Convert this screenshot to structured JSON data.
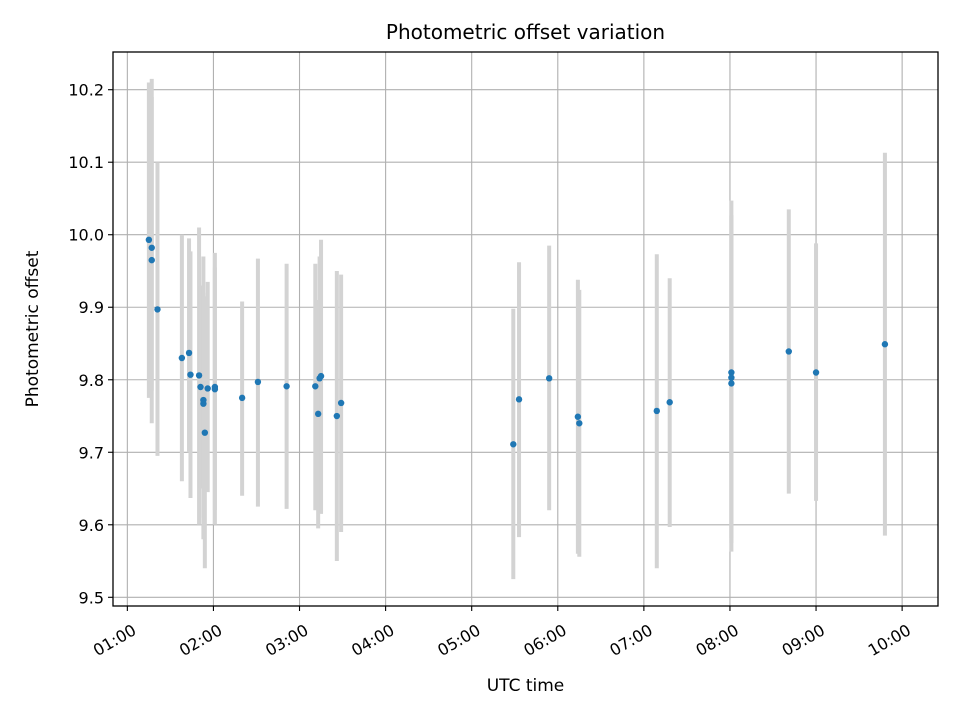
{
  "chart_data": {
    "type": "scatter",
    "title": "Photometric offset variation",
    "xlabel": "UTC time",
    "ylabel": "Photometric offset",
    "xlim": [
      "00:50",
      "10:25"
    ],
    "ylim": [
      9.488,
      10.252
    ],
    "x_ticks": [
      "01:00",
      "02:00",
      "03:00",
      "04:00",
      "05:00",
      "06:00",
      "07:00",
      "08:00",
      "09:00",
      "10:00"
    ],
    "y_ticks": [
      "9.5",
      "9.6",
      "9.7",
      "9.8",
      "9.9",
      "10.0",
      "10.1",
      "10.2"
    ],
    "grid": true,
    "point_color": "#1f77b4",
    "errorbar_color": "#d3d3d3",
    "points": [
      {
        "x": "01:15",
        "y": 9.993,
        "ylow": 9.775,
        "yhigh": 10.21
      },
      {
        "x": "01:17",
        "y": 9.982,
        "ylow": 9.785,
        "yhigh": 10.215
      },
      {
        "x": "01:17",
        "y": 9.965,
        "ylow": 9.74,
        "yhigh": 10.19
      },
      {
        "x": "01:21",
        "y": 9.897,
        "ylow": 9.695,
        "yhigh": 10.1
      },
      {
        "x": "01:38",
        "y": 9.83,
        "ylow": 9.66,
        "yhigh": 10.0
      },
      {
        "x": "01:43",
        "y": 9.837,
        "ylow": 9.7,
        "yhigh": 9.995
      },
      {
        "x": "01:44",
        "y": 9.807,
        "ylow": 9.637,
        "yhigh": 9.977
      },
      {
        "x": "01:50",
        "y": 9.806,
        "ylow": 9.6,
        "yhigh": 10.01
      },
      {
        "x": "01:51",
        "y": 9.79,
        "ylow": 9.65,
        "yhigh": 9.93
      },
      {
        "x": "01:53",
        "y": 9.772,
        "ylow": 9.58,
        "yhigh": 9.97
      },
      {
        "x": "01:53",
        "y": 9.767,
        "ylow": 9.61,
        "yhigh": 9.92
      },
      {
        "x": "01:54",
        "y": 9.727,
        "ylow": 9.54,
        "yhigh": 9.915
      },
      {
        "x": "01:56",
        "y": 9.788,
        "ylow": 9.645,
        "yhigh": 9.935
      },
      {
        "x": "02:01",
        "y": 9.79,
        "ylow": 9.6,
        "yhigh": 9.975
      },
      {
        "x": "02:01",
        "y": 9.787,
        "ylow": 9.62,
        "yhigh": 9.955
      },
      {
        "x": "02:20",
        "y": 9.775,
        "ylow": 9.64,
        "yhigh": 9.908
      },
      {
        "x": "02:31",
        "y": 9.797,
        "ylow": 9.625,
        "yhigh": 9.967
      },
      {
        "x": "02:51",
        "y": 9.791,
        "ylow": 9.622,
        "yhigh": 9.96
      },
      {
        "x": "03:11",
        "y": 9.791,
        "ylow": 9.62,
        "yhigh": 9.96
      },
      {
        "x": "03:13",
        "y": 9.753,
        "ylow": 9.595,
        "yhigh": 9.91
      },
      {
        "x": "03:14",
        "y": 9.802,
        "ylow": 9.64,
        "yhigh": 9.97
      },
      {
        "x": "03:15",
        "y": 9.805,
        "ylow": 9.615,
        "yhigh": 9.993
      },
      {
        "x": "03:26",
        "y": 9.75,
        "ylow": 9.55,
        "yhigh": 9.95
      },
      {
        "x": "03:29",
        "y": 9.768,
        "ylow": 9.59,
        "yhigh": 9.945
      },
      {
        "x": "05:29",
        "y": 9.711,
        "ylow": 9.525,
        "yhigh": 9.898
      },
      {
        "x": "05:33",
        "y": 9.773,
        "ylow": 9.583,
        "yhigh": 9.962
      },
      {
        "x": "05:54",
        "y": 9.802,
        "ylow": 9.62,
        "yhigh": 9.985
      },
      {
        "x": "06:14",
        "y": 9.749,
        "ylow": 9.56,
        "yhigh": 9.938
      },
      {
        "x": "06:15",
        "y": 9.74,
        "ylow": 9.556,
        "yhigh": 9.924
      },
      {
        "x": "07:09",
        "y": 9.757,
        "ylow": 9.54,
        "yhigh": 9.973
      },
      {
        "x": "07:18",
        "y": 9.769,
        "ylow": 9.597,
        "yhigh": 9.94
      },
      {
        "x": "08:01",
        "y": 9.81,
        "ylow": 9.575,
        "yhigh": 10.047
      },
      {
        "x": "08:01",
        "y": 9.803,
        "ylow": 9.582,
        "yhigh": 10.025
      },
      {
        "x": "08:01",
        "y": 9.795,
        "ylow": 9.563,
        "yhigh": 10.027
      },
      {
        "x": "08:41",
        "y": 9.839,
        "ylow": 9.643,
        "yhigh": 10.035
      },
      {
        "x": "09:00",
        "y": 9.81,
        "ylow": 9.633,
        "yhigh": 9.988
      },
      {
        "x": "09:48",
        "y": 9.849,
        "ylow": 9.585,
        "yhigh": 10.113
      }
    ]
  }
}
